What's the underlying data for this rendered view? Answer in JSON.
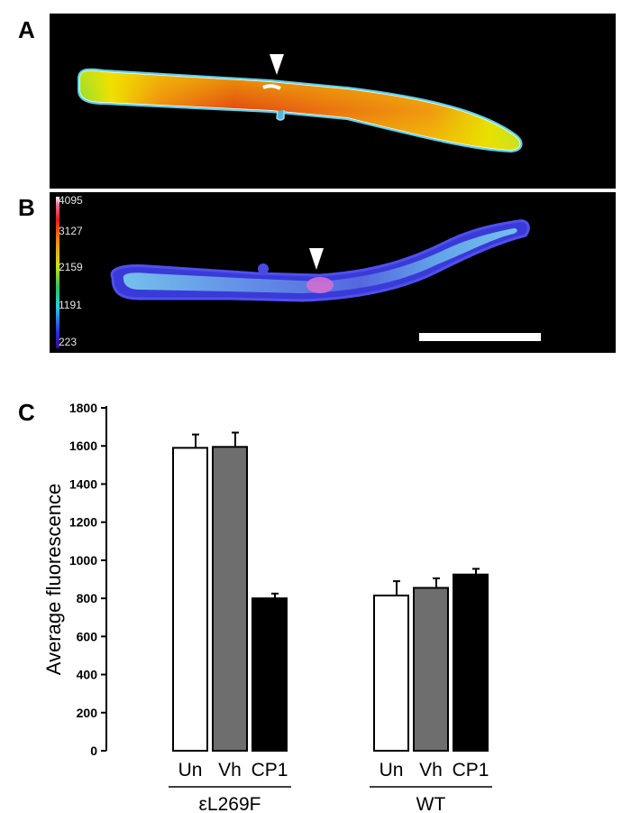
{
  "panels": {
    "a": {
      "letter": "A"
    },
    "b": {
      "letter": "B",
      "colorbar_labels": [
        "4095",
        "3127",
        "2159",
        "1191",
        "223"
      ]
    },
    "c": {
      "letter": "C"
    }
  },
  "chart_data": {
    "type": "bar",
    "ylabel": "Average fluorescence",
    "ylim": [
      0,
      1800
    ],
    "yticks": [
      0,
      200,
      400,
      600,
      800,
      1000,
      1200,
      1400,
      1600,
      1800
    ],
    "groups": [
      {
        "label": "εL269F",
        "bars": [
          {
            "category": "Un",
            "value": 1590,
            "error": 70,
            "fill": "#ffffff"
          },
          {
            "category": "Vh",
            "value": 1595,
            "error": 75,
            "fill": "#6e6e6e"
          },
          {
            "category": "CP1",
            "value": 800,
            "error": 25,
            "fill": "#000000"
          }
        ]
      },
      {
        "label": "WT",
        "bars": [
          {
            "category": "Un",
            "value": 815,
            "error": 75,
            "fill": "#ffffff"
          },
          {
            "category": "Vh",
            "value": 855,
            "error": 50,
            "fill": "#6e6e6e"
          },
          {
            "category": "CP1",
            "value": 925,
            "error": 30,
            "fill": "#000000"
          }
        ]
      }
    ]
  }
}
